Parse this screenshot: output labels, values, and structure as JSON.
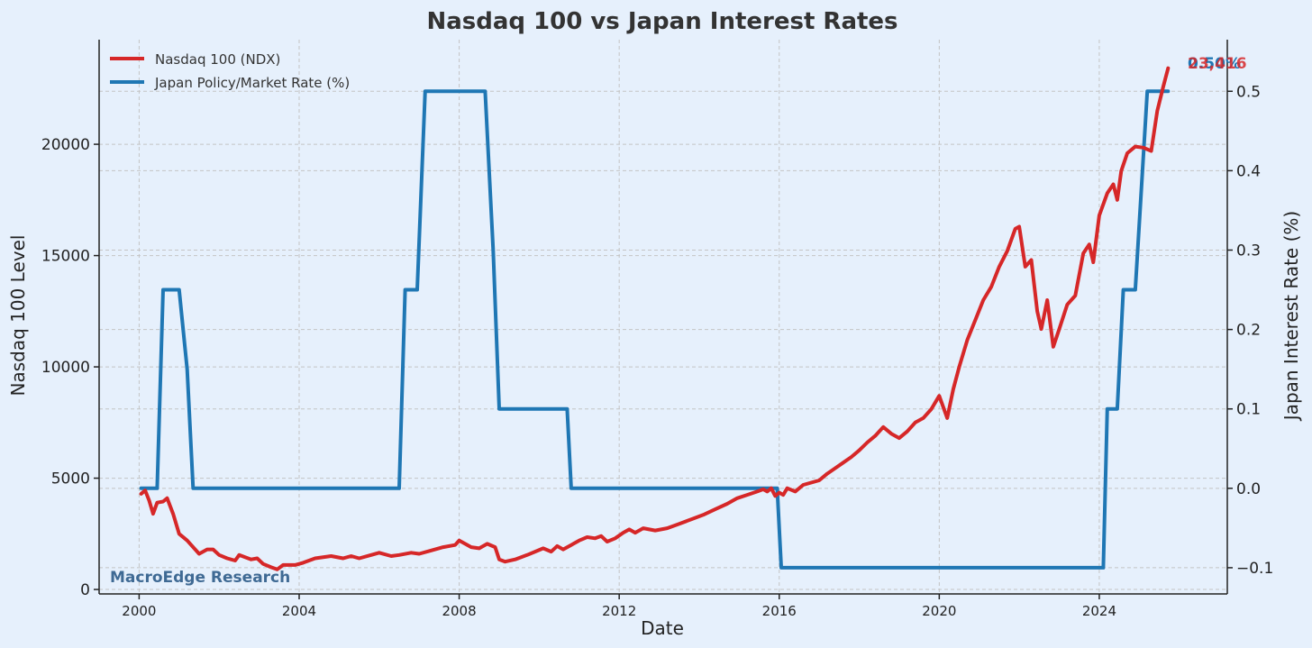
{
  "chart_data": {
    "type": "line",
    "title": "Nasdaq 100 vs Japan Interest Rates",
    "xlabel": "Date",
    "ylabel_left": "Nasdaq 100 Level",
    "ylabel_right": "Japan Interest Rate (%)",
    "x_ticks": [
      2000,
      2004,
      2008,
      2012,
      2016,
      2020,
      2024
    ],
    "xlim": [
      1999.0,
      2027.2
    ],
    "ylim_left": [
      -200,
      24700
    ],
    "ylim_right": [
      -0.133,
      0.565
    ],
    "left_ticks": [
      0,
      5000,
      10000,
      15000,
      20000
    ],
    "right_ticks": [
      -0.1,
      0.0,
      0.1,
      0.2,
      0.3,
      0.4,
      0.5
    ],
    "right_tick_labels": [
      "−0.1",
      "0.0",
      "0.1",
      "0.2",
      "0.3",
      "0.4",
      "0.5"
    ],
    "grid": true,
    "legend_position": "top-left",
    "watermark": "MacroEdge Research",
    "end_labels": {
      "nasdaq": "23,416",
      "rate": "0.50%"
    },
    "colors": {
      "nasdaq": "#d62728",
      "rate": "#1f77b4",
      "background": "#e6f0fc"
    },
    "series": [
      {
        "name": "Nasdaq 100 (NDX)",
        "axis": "left",
        "color": "#d62728",
        "points": [
          [
            2000.05,
            4300
          ],
          [
            2000.15,
            4450
          ],
          [
            2000.25,
            4000
          ],
          [
            2000.35,
            3400
          ],
          [
            2000.45,
            3900
          ],
          [
            2000.6,
            3950
          ],
          [
            2000.7,
            4100
          ],
          [
            2000.85,
            3400
          ],
          [
            2001.0,
            2500
          ],
          [
            2001.2,
            2200
          ],
          [
            2001.35,
            1900
          ],
          [
            2001.5,
            1600
          ],
          [
            2001.7,
            1800
          ],
          [
            2001.85,
            1800
          ],
          [
            2002.0,
            1550
          ],
          [
            2002.2,
            1400
          ],
          [
            2002.4,
            1300
          ],
          [
            2002.5,
            1550
          ],
          [
            2002.65,
            1450
          ],
          [
            2002.8,
            1350
          ],
          [
            2002.95,
            1400
          ],
          [
            2003.1,
            1150
          ],
          [
            2003.3,
            1000
          ],
          [
            2003.45,
            900
          ],
          [
            2003.6,
            1100
          ],
          [
            2003.9,
            1100
          ],
          [
            2004.1,
            1200
          ],
          [
            2004.4,
            1400
          ],
          [
            2004.8,
            1500
          ],
          [
            2005.1,
            1400
          ],
          [
            2005.3,
            1500
          ],
          [
            2005.5,
            1400
          ],
          [
            2005.8,
            1550
          ],
          [
            2006.0,
            1650
          ],
          [
            2006.3,
            1500
          ],
          [
            2006.5,
            1550
          ],
          [
            2006.8,
            1650
          ],
          [
            2007.0,
            1600
          ],
          [
            2007.3,
            1750
          ],
          [
            2007.6,
            1900
          ],
          [
            2007.9,
            2000
          ],
          [
            2008.0,
            2200
          ],
          [
            2008.15,
            2050
          ],
          [
            2008.3,
            1900
          ],
          [
            2008.5,
            1850
          ],
          [
            2008.7,
            2050
          ],
          [
            2008.9,
            1900
          ],
          [
            2009.0,
            1350
          ],
          [
            2009.15,
            1250
          ],
          [
            2009.4,
            1350
          ],
          [
            2009.7,
            1550
          ],
          [
            2009.9,
            1700
          ],
          [
            2010.1,
            1850
          ],
          [
            2010.3,
            1700
          ],
          [
            2010.45,
            1950
          ],
          [
            2010.6,
            1800
          ],
          [
            2010.8,
            2000
          ],
          [
            2011.0,
            2200
          ],
          [
            2011.2,
            2350
          ],
          [
            2011.4,
            2300
          ],
          [
            2011.55,
            2400
          ],
          [
            2011.7,
            2150
          ],
          [
            2011.9,
            2300
          ],
          [
            2012.1,
            2550
          ],
          [
            2012.25,
            2700
          ],
          [
            2012.4,
            2550
          ],
          [
            2012.6,
            2750
          ],
          [
            2012.9,
            2650
          ],
          [
            2013.2,
            2750
          ],
          [
            2013.5,
            2950
          ],
          [
            2013.8,
            3150
          ],
          [
            2014.1,
            3350
          ],
          [
            2014.4,
            3600
          ],
          [
            2014.7,
            3850
          ],
          [
            2014.95,
            4100
          ],
          [
            2015.2,
            4250
          ],
          [
            2015.45,
            4400
          ],
          [
            2015.6,
            4500
          ],
          [
            2015.7,
            4400
          ],
          [
            2015.8,
            4550
          ],
          [
            2015.9,
            4200
          ],
          [
            2016.0,
            4350
          ],
          [
            2016.1,
            4250
          ],
          [
            2016.2,
            4550
          ],
          [
            2016.4,
            4400
          ],
          [
            2016.6,
            4700
          ],
          [
            2016.8,
            4800
          ],
          [
            2017.0,
            4900
          ],
          [
            2017.2,
            5200
          ],
          [
            2017.4,
            5450
          ],
          [
            2017.6,
            5700
          ],
          [
            2017.8,
            5950
          ],
          [
            2018.0,
            6250
          ],
          [
            2018.2,
            6600
          ],
          [
            2018.4,
            6900
          ],
          [
            2018.6,
            7300
          ],
          [
            2018.8,
            7000
          ],
          [
            2019.0,
            6800
          ],
          [
            2019.2,
            7100
          ],
          [
            2019.4,
            7500
          ],
          [
            2019.6,
            7700
          ],
          [
            2019.8,
            8100
          ],
          [
            2020.0,
            8700
          ],
          [
            2020.2,
            7700
          ],
          [
            2020.35,
            9000
          ],
          [
            2020.5,
            10000
          ],
          [
            2020.7,
            11200
          ],
          [
            2020.9,
            12100
          ],
          [
            2021.1,
            13000
          ],
          [
            2021.3,
            13600
          ],
          [
            2021.5,
            14500
          ],
          [
            2021.7,
            15200
          ],
          [
            2021.9,
            16200
          ],
          [
            2022.0,
            16300
          ],
          [
            2022.15,
            14500
          ],
          [
            2022.3,
            14800
          ],
          [
            2022.45,
            12500
          ],
          [
            2022.55,
            11700
          ],
          [
            2022.7,
            13000
          ],
          [
            2022.85,
            10900
          ],
          [
            2023.0,
            11700
          ],
          [
            2023.2,
            12800
          ],
          [
            2023.4,
            13200
          ],
          [
            2023.6,
            15100
          ],
          [
            2023.75,
            15500
          ],
          [
            2023.85,
            14700
          ],
          [
            2024.0,
            16800
          ],
          [
            2024.2,
            17800
          ],
          [
            2024.35,
            18200
          ],
          [
            2024.45,
            17500
          ],
          [
            2024.55,
            18800
          ],
          [
            2024.7,
            19600
          ],
          [
            2024.9,
            19900
          ],
          [
            2025.1,
            19850
          ],
          [
            2025.3,
            19700
          ],
          [
            2025.45,
            21500
          ],
          [
            2025.6,
            22600
          ],
          [
            2025.72,
            23416
          ]
        ]
      },
      {
        "name": "Japan Policy/Market Rate (%)",
        "axis": "right",
        "color": "#1f77b4",
        "points": [
          [
            2000.05,
            0.0
          ],
          [
            2000.45,
            0.0
          ],
          [
            2000.6,
            0.25
          ],
          [
            2001.0,
            0.25
          ],
          [
            2001.2,
            0.15
          ],
          [
            2001.35,
            0.0
          ],
          [
            2006.5,
            0.0
          ],
          [
            2006.65,
            0.25
          ],
          [
            2006.95,
            0.25
          ],
          [
            2007.15,
            0.5
          ],
          [
            2008.65,
            0.5
          ],
          [
            2008.85,
            0.3
          ],
          [
            2009.0,
            0.1
          ],
          [
            2010.7,
            0.1
          ],
          [
            2010.8,
            0.0
          ],
          [
            2015.95,
            0.0
          ],
          [
            2016.05,
            -0.1
          ],
          [
            2024.1,
            -0.1
          ],
          [
            2024.2,
            0.1
          ],
          [
            2024.45,
            0.1
          ],
          [
            2024.6,
            0.25
          ],
          [
            2024.9,
            0.25
          ],
          [
            2025.2,
            0.5
          ],
          [
            2025.72,
            0.5
          ]
        ]
      }
    ]
  }
}
